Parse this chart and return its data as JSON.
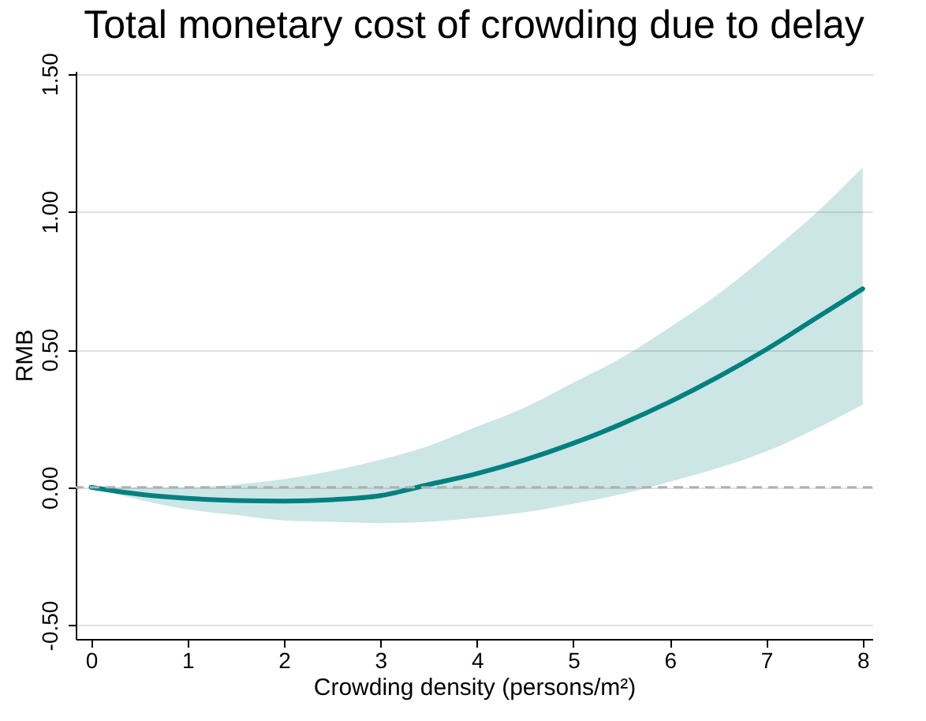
{
  "chart_data": {
    "type": "line",
    "title": "Total monetary cost of crowding due to delay",
    "xlabel": "Crowding density (persons/m²)",
    "ylabel": "RMB",
    "x": [
      0,
      0.5,
      1,
      1.5,
      2,
      2.5,
      3,
      3.5,
      4,
      4.5,
      5,
      5.5,
      6,
      6.5,
      7,
      7.5,
      8
    ],
    "series": [
      {
        "color": "#00807f",
        "values": [
          0,
          -0.025,
          -0.04,
          -0.048,
          -0.05,
          -0.045,
          -0.03,
          0.01,
          0.05,
          0.1,
          0.16,
          0.23,
          0.31,
          0.4,
          0.5,
          0.61,
          0.72
        ],
        "lower": [
          0,
          -0.045,
          -0.08,
          -0.1,
          -0.12,
          -0.125,
          -0.13,
          -0.125,
          -0.11,
          -0.09,
          -0.06,
          -0.025,
          0.02,
          0.07,
          0.13,
          0.21,
          0.3
        ],
        "upper": [
          0,
          0,
          0,
          0.01,
          0.03,
          0.06,
          0.1,
          0.15,
          0.22,
          0.29,
          0.38,
          0.47,
          0.58,
          0.7,
          0.84,
          0.99,
          1.16
        ]
      }
    ],
    "xlim": [
      -0.16,
      8.1
    ],
    "xticks": [
      0,
      1,
      2,
      3,
      4,
      5,
      6,
      7,
      8
    ],
    "ylim": [
      -0.55,
      1.51
    ],
    "yticks": [
      {
        "value": -0.5,
        "label": "-0.50"
      },
      {
        "value": 0,
        "label": "0.00"
      },
      {
        "value": 0.5,
        "label": "0.50"
      },
      {
        "value": 1,
        "label": "1.00"
      },
      {
        "value": 1.5,
        "label": "1.50"
      }
    ],
    "grid": "y",
    "line_style": "solid",
    "ref_lines": [
      {
        "axis": "y",
        "value": 0,
        "color": "#b0b0b0",
        "line_style": "dashed"
      }
    ]
  }
}
